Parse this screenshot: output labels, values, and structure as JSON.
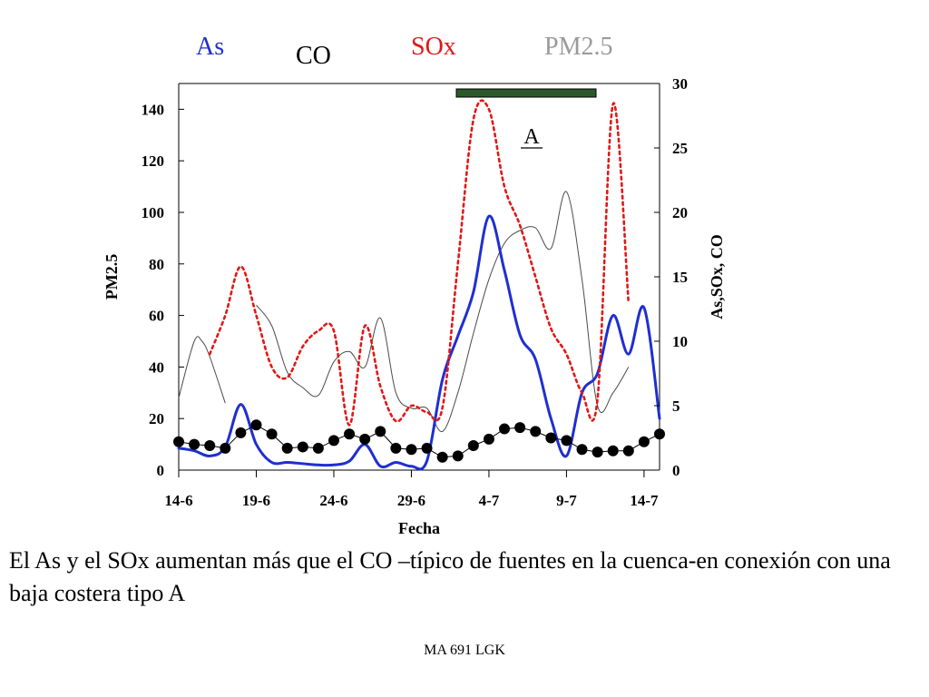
{
  "legend": {
    "as": {
      "label": "As",
      "color": "#1f2fd0"
    },
    "co": {
      "label": "CO",
      "color": "#000000"
    },
    "sox": {
      "label": "SOx",
      "color": "#e01818"
    },
    "pm25": {
      "label": "PM2.5",
      "color": "#9a9a9a"
    }
  },
  "annotation": {
    "label": "A",
    "period": [
      "3-7",
      "12-7"
    ],
    "bar_color": "#2a5a2a"
  },
  "caption": "El As y el SOx aumentan más que el CO –típico de fuentes en la cuenca-en conexión con una baja costera tipo A",
  "footer": "MA 691 LGK",
  "chart_data": {
    "type": "line",
    "title": "",
    "xlabel": "Fecha",
    "ylabel_left": "PM2.5",
    "ylabel_right": "As,SOx, CO",
    "x_tick_labels": [
      "14-6",
      "19-6",
      "24-6",
      "29-6",
      "4-7",
      "9-7",
      "14-7"
    ],
    "x_ticks_day_index": [
      0,
      5,
      10,
      15,
      20,
      25,
      30
    ],
    "xlim_day_index": [
      0,
      31
    ],
    "ylim_left": [
      0,
      150
    ],
    "ylim_right": [
      0,
      30
    ],
    "yticks_left": [
      0,
      20,
      40,
      60,
      80,
      100,
      120,
      140
    ],
    "yticks_right": [
      0,
      5,
      10,
      15,
      20,
      25,
      30
    ],
    "grid": false,
    "series": [
      {
        "name": "PM2.5",
        "axis": "left",
        "style": "thin",
        "color": "#4a4a4a",
        "x": [
          0,
          1,
          1.5,
          2,
          3,
          5,
          6,
          7,
          8,
          9,
          10,
          11,
          12,
          13,
          14,
          15,
          16,
          17,
          18,
          19,
          20,
          21,
          22,
          23,
          24,
          25,
          26,
          27,
          28,
          29
        ],
        "y": [
          28,
          50,
          50,
          44,
          26,
          64,
          56,
          38,
          32,
          29,
          42,
          46,
          40,
          59,
          30,
          24,
          24,
          15,
          30,
          53,
          74,
          88,
          93,
          94,
          86,
          108,
          74,
          25,
          30,
          40
        ]
      },
      {
        "name": "As",
        "axis": "right",
        "style": "thick",
        "color": "#1f2fd0",
        "x": [
          0,
          1,
          2,
          3,
          4,
          5,
          6,
          7,
          8,
          9,
          10,
          11,
          12,
          13,
          14,
          15,
          16,
          17,
          18,
          19,
          20,
          21,
          22,
          23,
          24,
          25,
          26,
          27,
          28,
          29,
          30,
          31
        ],
        "y": [
          1.7,
          1.5,
          1.1,
          1.8,
          5.1,
          2.0,
          0.6,
          0.6,
          0.5,
          0.4,
          0.4,
          0.7,
          2.0,
          0.3,
          0.6,
          0.3,
          0.7,
          7.0,
          10.4,
          13.8,
          19.7,
          15.5,
          10.5,
          8.6,
          4.0,
          1.1,
          6.0,
          7.5,
          12.0,
          9.0,
          12.6,
          4.0
        ]
      },
      {
        "name": "SOx",
        "axis": "right",
        "style": "dotted",
        "color": "#e01818",
        "x": [
          2,
          3,
          4,
          5,
          6,
          7,
          8,
          9,
          10,
          11,
          12,
          13,
          14,
          15,
          16,
          17,
          18,
          19,
          20,
          21,
          22,
          23,
          24,
          25,
          26,
          27,
          28,
          29
        ],
        "y": [
          9.0,
          12.0,
          15.8,
          12.0,
          8.0,
          7.2,
          9.6,
          10.8,
          10.8,
          3.5,
          11.2,
          6.5,
          3.8,
          5.0,
          4.5,
          4.8,
          16.0,
          27.2,
          28.0,
          22.0,
          19.0,
          15.0,
          11.0,
          9.0,
          6.0,
          5.5,
          28.4,
          13.0
        ]
      },
      {
        "name": "CO",
        "axis": "right",
        "style": "markers",
        "color": "#000000",
        "x": [
          0,
          1,
          2,
          3,
          4,
          5,
          6,
          7,
          8,
          9,
          10,
          11,
          12,
          13,
          14,
          15,
          16,
          17,
          18,
          19,
          20,
          21,
          22,
          23,
          24,
          25,
          26,
          27,
          28,
          29,
          30,
          31
        ],
        "y": [
          2.2,
          2.0,
          1.9,
          1.7,
          2.9,
          3.5,
          2.8,
          1.7,
          1.8,
          1.7,
          2.3,
          2.8,
          2.4,
          3.0,
          1.7,
          1.6,
          1.7,
          1.0,
          1.1,
          1.9,
          2.4,
          3.2,
          3.3,
          3.0,
          2.5,
          2.3,
          1.6,
          1.4,
          1.5,
          1.5,
          2.2,
          2.8
        ]
      }
    ]
  }
}
